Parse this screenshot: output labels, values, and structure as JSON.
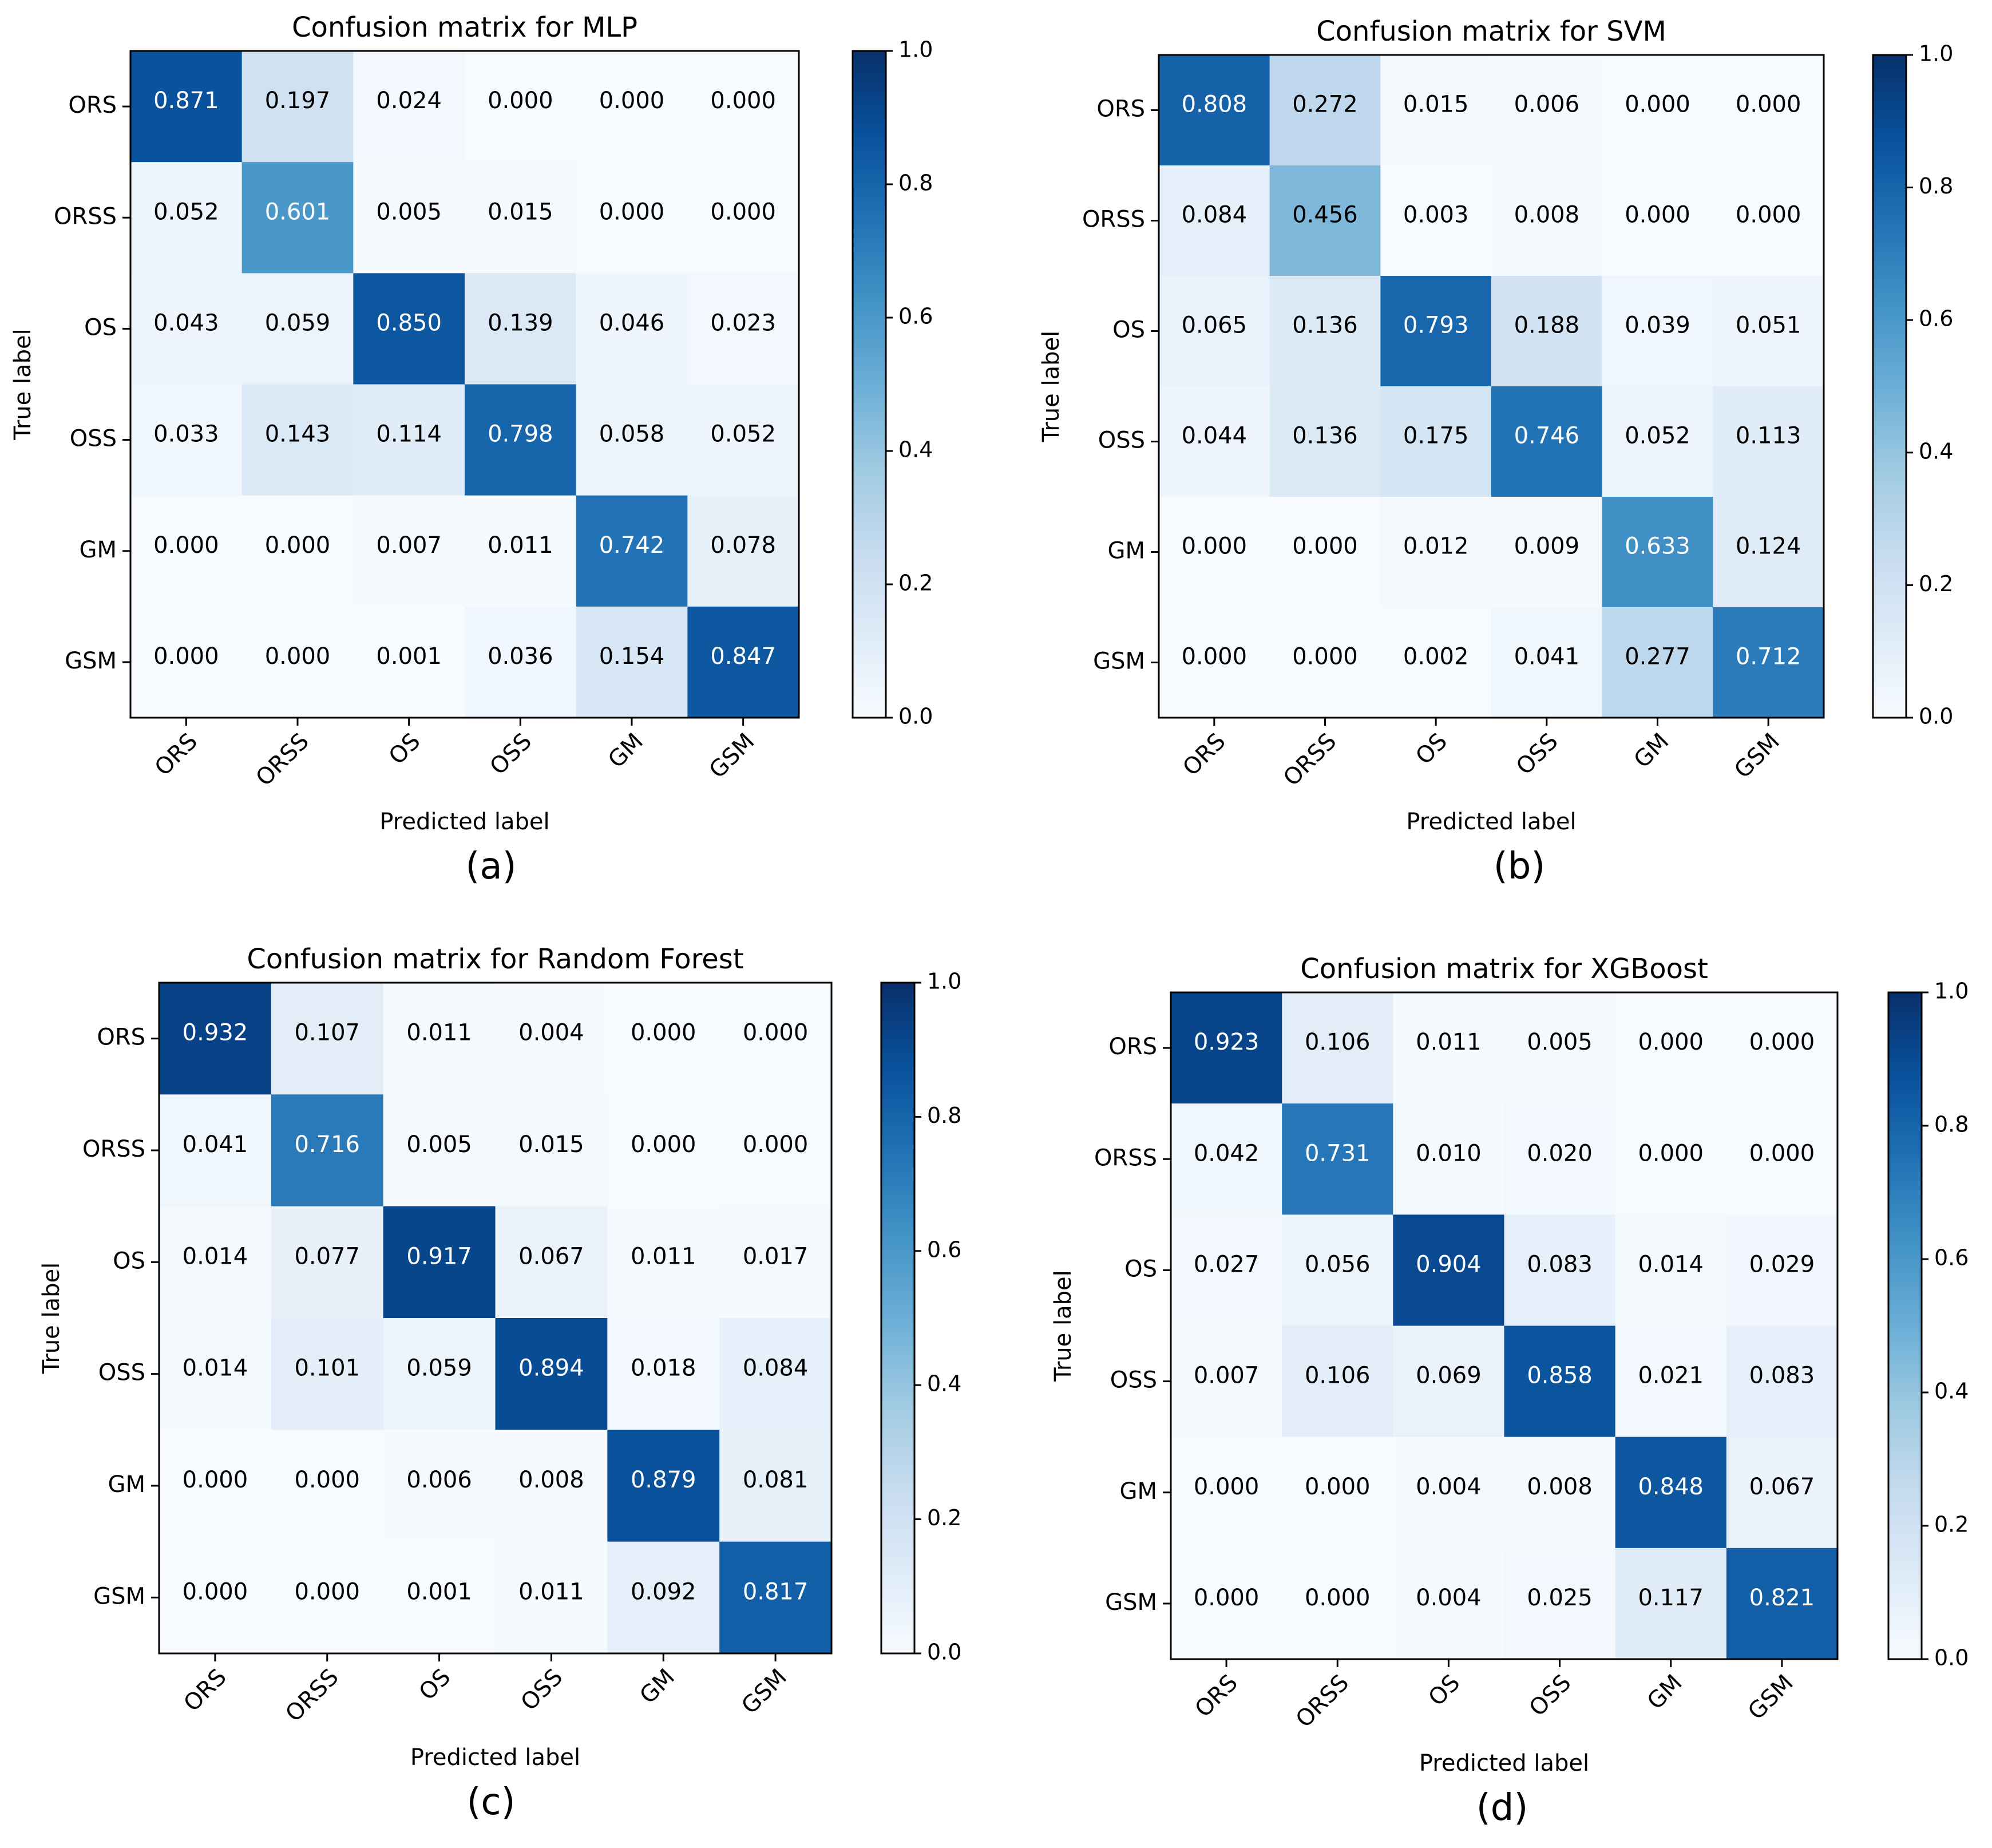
{
  "chart_data": [
    {
      "type": "heatmap",
      "title": "Confusion matrix for MLP",
      "caption": "(a)",
      "xlabel": "Predicted label",
      "ylabel": "True label",
      "categories": [
        "ORS",
        "ORSS",
        "OS",
        "OSS",
        "GM",
        "GSM"
      ],
      "values": [
        [
          0.871,
          0.197,
          0.024,
          0.0,
          0.0,
          0.0
        ],
        [
          0.052,
          0.601,
          0.005,
          0.015,
          0.0,
          0.0
        ],
        [
          0.043,
          0.059,
          0.85,
          0.139,
          0.046,
          0.023
        ],
        [
          0.033,
          0.143,
          0.114,
          0.798,
          0.058,
          0.052
        ],
        [
          0.0,
          0.0,
          0.007,
          0.011,
          0.742,
          0.078
        ],
        [
          0.0,
          0.0,
          0.001,
          0.036,
          0.154,
          0.847
        ]
      ],
      "colorbar_ticks": [
        "0.0",
        "0.2",
        "0.4",
        "0.6",
        "0.8",
        "1.0"
      ],
      "vlim": [
        0,
        1
      ]
    },
    {
      "type": "heatmap",
      "title": "Confusion matrix for SVM",
      "caption": "(b)",
      "xlabel": "Predicted label",
      "ylabel": "True label",
      "categories": [
        "ORS",
        "ORSS",
        "OS",
        "OSS",
        "GM",
        "GSM"
      ],
      "values": [
        [
          0.808,
          0.272,
          0.015,
          0.006,
          0.0,
          0.0
        ],
        [
          0.084,
          0.456,
          0.003,
          0.008,
          0.0,
          0.0
        ],
        [
          0.065,
          0.136,
          0.793,
          0.188,
          0.039,
          0.051
        ],
        [
          0.044,
          0.136,
          0.175,
          0.746,
          0.052,
          0.113
        ],
        [
          0.0,
          0.0,
          0.012,
          0.009,
          0.633,
          0.124
        ],
        [
          0.0,
          0.0,
          0.002,
          0.041,
          0.277,
          0.712
        ]
      ],
      "colorbar_ticks": [
        "0.0",
        "0.2",
        "0.4",
        "0.6",
        "0.8",
        "1.0"
      ],
      "vlim": [
        0,
        1
      ]
    },
    {
      "type": "heatmap",
      "title": "Confusion matrix for Random Forest",
      "caption": "(c)",
      "xlabel": "Predicted label",
      "ylabel": "True label",
      "categories": [
        "ORS",
        "ORSS",
        "OS",
        "OSS",
        "GM",
        "GSM"
      ],
      "values": [
        [
          0.932,
          0.107,
          0.011,
          0.004,
          0.0,
          0.0
        ],
        [
          0.041,
          0.716,
          0.005,
          0.015,
          0.0,
          0.0
        ],
        [
          0.014,
          0.077,
          0.917,
          0.067,
          0.011,
          0.017
        ],
        [
          0.014,
          0.101,
          0.059,
          0.894,
          0.018,
          0.084
        ],
        [
          0.0,
          0.0,
          0.006,
          0.008,
          0.879,
          0.081
        ],
        [
          0.0,
          0.0,
          0.001,
          0.011,
          0.092,
          0.817
        ]
      ],
      "colorbar_ticks": [
        "0.0",
        "0.2",
        "0.4",
        "0.6",
        "0.8",
        "1.0"
      ],
      "vlim": [
        0,
        1
      ]
    },
    {
      "type": "heatmap",
      "title": "Confusion matrix for XGBoost",
      "caption": "(d)",
      "xlabel": "Predicted label",
      "ylabel": "True label",
      "categories": [
        "ORS",
        "ORSS",
        "OS",
        "OSS",
        "GM",
        "GSM"
      ],
      "values": [
        [
          0.923,
          0.106,
          0.011,
          0.005,
          0.0,
          0.0
        ],
        [
          0.042,
          0.731,
          0.01,
          0.02,
          0.0,
          0.0
        ],
        [
          0.027,
          0.056,
          0.904,
          0.083,
          0.014,
          0.029
        ],
        [
          0.007,
          0.106,
          0.069,
          0.858,
          0.021,
          0.083
        ],
        [
          0.0,
          0.0,
          0.004,
          0.008,
          0.848,
          0.067
        ],
        [
          0.0,
          0.0,
          0.004,
          0.025,
          0.117,
          0.821
        ]
      ],
      "colorbar_ticks": [
        "0.0",
        "0.2",
        "0.4",
        "0.6",
        "0.8",
        "1.0"
      ],
      "vlim": [
        0,
        1
      ]
    }
  ]
}
